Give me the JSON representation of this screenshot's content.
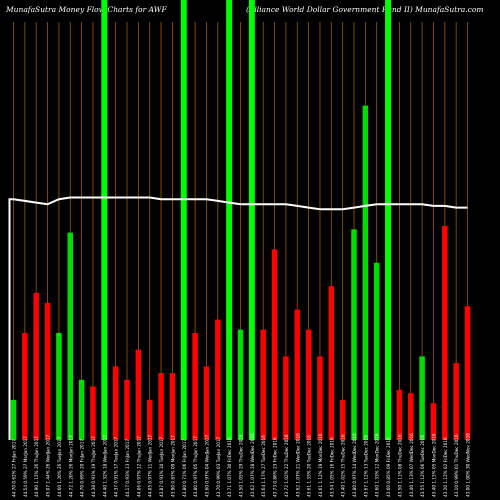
{
  "header": {
    "left": "MunafaSutra  Money Flow  Charts for AWF",
    "right": "(Alliance    World Dollar Government Fund II) MunafaSutra.com"
  },
  "colors": {
    "background": "#000000",
    "up": "#00dd00",
    "down": "#ff0000",
    "highlight": "#00ff00",
    "gridline": "#a05a00",
    "line": "#ffffff",
    "text": "#ffffff"
  },
  "chart_data": {
    "type": "bar",
    "ylim": [
      0,
      100
    ],
    "bar_values": [
      12,
      32,
      44,
      41,
      32,
      62,
      18,
      16,
      0,
      22,
      18,
      27,
      12,
      20,
      20,
      0,
      32,
      22,
      36,
      0,
      33,
      0,
      33,
      57,
      25,
      39,
      33,
      25,
      46,
      12,
      63,
      100,
      53,
      0,
      15,
      14,
      25,
      11,
      64,
      23,
      40
    ],
    "bar_directions": [
      "up",
      "down",
      "down",
      "down",
      "up",
      "up",
      "up",
      "down",
      "up",
      "down",
      "down",
      "down",
      "down",
      "down",
      "down",
      "up",
      "down",
      "down",
      "down",
      "up",
      "up",
      "up",
      "down",
      "down",
      "down",
      "down",
      "down",
      "down",
      "down",
      "down",
      "up",
      "up",
      "up",
      "up",
      "down",
      "down",
      "up",
      "down",
      "down",
      "down",
      "down"
    ],
    "highlight_indices": [
      8,
      15,
      19,
      21,
      33
    ],
    "line_values": [
      72,
      71.5,
      71,
      70.5,
      72,
      72.5,
      72.5,
      72.5,
      72.5,
      72.5,
      72.5,
      72.5,
      72.5,
      72,
      72,
      72,
      72,
      72,
      71.5,
      71,
      70.5,
      70.5,
      70.5,
      70.5,
      70.5,
      70,
      69.5,
      69,
      69,
      69,
      69.5,
      70,
      70.5,
      70.5,
      70.5,
      70.5,
      70.5,
      70,
      70,
      69.5,
      69.5
    ],
    "line_start": 0,
    "x_labels": [
      "44.70 0.62% 27 FriJan 2017",
      "44.54 0.59% 27 MarJan 2017",
      "44.90 1.15% 26 ThuJan 2017",
      "45.07 1.44% 26 WedJan 2017",
      "44.60 1.20% 26 TueJan 2017",
      "44.72 1.20% 26 MonJan 2017",
      "44.70 0.69% 20 FriJan 2017",
      "44.38 0.91% 19 ThuJan 2017",
      "44.40 1.32% 18 WedJan 2017",
      "44.37 0.91% 17 TueJan 2017",
      "44.17 0.93% 13 FriJan 2017",
      "44.06 0.97% 12 ThuJan 2017",
      "44.05 0.97% 11 WedJan 2017",
      "43.87 0.91% 10 TueJan 2017",
      "43.90 0.87% 09 MonJan 2017",
      "43.80 0.71% 06 FriJan 2017",
      "43.80 0.97% 05 ThuJan 2017",
      "43.60 0.97% 04 WedJan 2017",
      "43.70 0.99% 03 TueJan 2017",
      "43.71 1.07% 30 FriDec 2016",
      "43.50 1.05% 29 ThuDec 2016",
      "43.62 1.07% 28 WedDec 2016",
      "43.64 1.17% 27 TueDec 2016",
      "43.73 0.86% 23 FriDec 2016",
      "43.72 1.02% 22 ThuDec 2016",
      "43.62 1.07% 21 WedDec 2016",
      "43.61 1.33% 20 TueDec 2016",
      "43.61 1.12% 19 MonDec 2016",
      "43.54 1.05% 16 FriDec 2016",
      "43.40 1.02% 15 ThuDec 2016",
      "43.80 0.97% 14 WedDec 2016",
      "43.67 1.12% 13 TueDec 2016",
      "43.60 1.33% 12 MonDec 2016",
      "43.60 0.85% 09 FriDec 2016",
      "43.50 1.11% 08 ThuDec 2016",
      "43.40 1.13% 07 WedDec 2016",
      "43.55 1.12% 06 TueDec 2016",
      "43.40 1.15% 05 MonDec 2016",
      "43.20 1.12% 02 FriDec 2016",
      "43.10 0.99% 01 ThuDec 2016",
      "43.00 1.00% 30 WedNov 2016"
    ]
  }
}
